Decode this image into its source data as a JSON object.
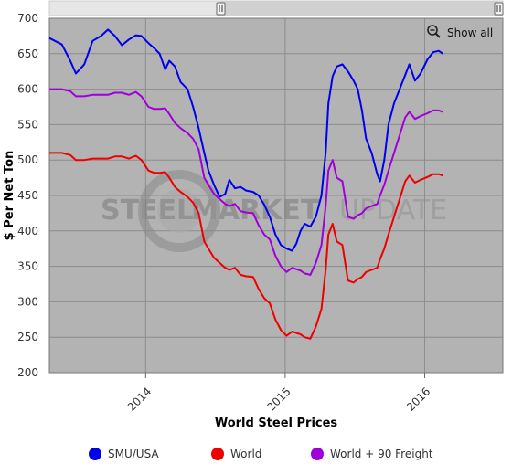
{
  "toolbar": {
    "show_all_label": "Show all",
    "zoom_icon": "zoom-out-icon"
  },
  "watermark": {
    "word1": "STEEL",
    "word2": "MARKET",
    "word3": "UPDATE"
  },
  "chart_data": {
    "type": "line",
    "title": "",
    "xlabel": "World Steel Prices",
    "ylabel": "$ Per Net Ton",
    "ylim": [
      200,
      700
    ],
    "yticks": [
      200,
      250,
      300,
      350,
      400,
      450,
      500,
      550,
      600,
      650,
      700
    ],
    "xlim": [
      2013.31,
      2016.56
    ],
    "xticks": [
      {
        "value": 2014,
        "label": "2014"
      },
      {
        "value": 2015,
        "label": "2015"
      },
      {
        "value": 2016,
        "label": "2016"
      }
    ],
    "grid": true,
    "legend": "bottom",
    "series": [
      {
        "name": "SMU/USA",
        "color": "#0000ee",
        "points": [
          [
            2013.31,
            672
          ],
          [
            2013.4,
            663
          ],
          [
            2013.46,
            640
          ],
          [
            2013.5,
            622
          ],
          [
            2013.56,
            635
          ],
          [
            2013.62,
            668
          ],
          [
            2013.68,
            675
          ],
          [
            2013.73,
            684
          ],
          [
            2013.78,
            675
          ],
          [
            2013.83,
            662
          ],
          [
            2013.88,
            670
          ],
          [
            2013.93,
            676
          ],
          [
            2013.97,
            675
          ],
          [
            2014.02,
            665
          ],
          [
            2014.06,
            658
          ],
          [
            2014.1,
            650
          ],
          [
            2014.14,
            628
          ],
          [
            2014.17,
            640
          ],
          [
            2014.21,
            632
          ],
          [
            2014.25,
            610
          ],
          [
            2014.3,
            600
          ],
          [
            2014.34,
            575
          ],
          [
            2014.38,
            545
          ],
          [
            2014.42,
            510
          ],
          [
            2014.45,
            485
          ],
          [
            2014.49,
            465
          ],
          [
            2014.53,
            448
          ],
          [
            2014.57,
            452
          ],
          [
            2014.6,
            472
          ],
          [
            2014.64,
            460
          ],
          [
            2014.68,
            462
          ],
          [
            2014.72,
            457
          ],
          [
            2014.77,
            455
          ],
          [
            2014.81,
            450
          ],
          [
            2014.85,
            437
          ],
          [
            2014.89,
            420
          ],
          [
            2014.93,
            395
          ],
          [
            2014.97,
            380
          ],
          [
            2015.01,
            375
          ],
          [
            2015.05,
            372
          ],
          [
            2015.08,
            382
          ],
          [
            2015.11,
            400
          ],
          [
            2015.14,
            410
          ],
          [
            2015.18,
            406
          ],
          [
            2015.22,
            420
          ],
          [
            2015.26,
            450
          ],
          [
            2015.29,
            510
          ],
          [
            2015.31,
            580
          ],
          [
            2015.34,
            618
          ],
          [
            2015.37,
            632
          ],
          [
            2015.41,
            635
          ],
          [
            2015.45,
            625
          ],
          [
            2015.49,
            612
          ],
          [
            2015.52,
            600
          ],
          [
            2015.55,
            570
          ],
          [
            2015.58,
            530
          ],
          [
            2015.62,
            510
          ],
          [
            2015.66,
            480
          ],
          [
            2015.68,
            470
          ],
          [
            2015.71,
            500
          ],
          [
            2015.74,
            550
          ],
          [
            2015.78,
            580
          ],
          [
            2015.82,
            600
          ],
          [
            2015.86,
            620
          ],
          [
            2015.89,
            635
          ],
          [
            2015.93,
            612
          ],
          [
            2015.97,
            622
          ],
          [
            2016.02,
            642
          ],
          [
            2016.06,
            652
          ],
          [
            2016.1,
            654
          ],
          [
            2016.13,
            650
          ]
        ]
      },
      {
        "name": "World",
        "color": "#ee0000",
        "points": [
          [
            2013.31,
            510
          ],
          [
            2013.4,
            510
          ],
          [
            2013.46,
            507
          ],
          [
            2013.5,
            500
          ],
          [
            2013.56,
            500
          ],
          [
            2013.62,
            502
          ],
          [
            2013.68,
            502
          ],
          [
            2013.73,
            502
          ],
          [
            2013.78,
            505
          ],
          [
            2013.83,
            505
          ],
          [
            2013.88,
            502
          ],
          [
            2013.93,
            506
          ],
          [
            2013.97,
            500
          ],
          [
            2014.02,
            485
          ],
          [
            2014.06,
            482
          ],
          [
            2014.1,
            482
          ],
          [
            2014.14,
            483
          ],
          [
            2014.17,
            475
          ],
          [
            2014.21,
            462
          ],
          [
            2014.25,
            455
          ],
          [
            2014.3,
            448
          ],
          [
            2014.34,
            440
          ],
          [
            2014.38,
            425
          ],
          [
            2014.42,
            385
          ],
          [
            2014.45,
            375
          ],
          [
            2014.49,
            362
          ],
          [
            2014.53,
            355
          ],
          [
            2014.57,
            348
          ],
          [
            2014.6,
            345
          ],
          [
            2014.64,
            348
          ],
          [
            2014.68,
            338
          ],
          [
            2014.72,
            336
          ],
          [
            2014.77,
            335
          ],
          [
            2014.81,
            318
          ],
          [
            2014.85,
            305
          ],
          [
            2014.89,
            298
          ],
          [
            2014.93,
            275
          ],
          [
            2014.97,
            260
          ],
          [
            2015.01,
            252
          ],
          [
            2015.05,
            258
          ],
          [
            2015.08,
            256
          ],
          [
            2015.11,
            254
          ],
          [
            2015.14,
            250
          ],
          [
            2015.18,
            248
          ],
          [
            2015.22,
            265
          ],
          [
            2015.26,
            290
          ],
          [
            2015.29,
            345
          ],
          [
            2015.31,
            395
          ],
          [
            2015.34,
            410
          ],
          [
            2015.37,
            385
          ],
          [
            2015.41,
            380
          ],
          [
            2015.45,
            330
          ],
          [
            2015.49,
            327
          ],
          [
            2015.52,
            332
          ],
          [
            2015.55,
            335
          ],
          [
            2015.58,
            342
          ],
          [
            2015.62,
            345
          ],
          [
            2015.66,
            348
          ],
          [
            2015.68,
            360
          ],
          [
            2015.71,
            375
          ],
          [
            2015.74,
            395
          ],
          [
            2015.78,
            420
          ],
          [
            2015.82,
            445
          ],
          [
            2015.86,
            470
          ],
          [
            2015.89,
            478
          ],
          [
            2015.93,
            468
          ],
          [
            2015.97,
            472
          ],
          [
            2016.02,
            476
          ],
          [
            2016.06,
            480
          ],
          [
            2016.1,
            480
          ],
          [
            2016.13,
            478
          ]
        ]
      },
      {
        "name": "World + 90 Freight",
        "color": "#a000d8",
        "points": [
          [
            2013.31,
            600
          ],
          [
            2013.4,
            600
          ],
          [
            2013.46,
            597
          ],
          [
            2013.5,
            590
          ],
          [
            2013.56,
            590
          ],
          [
            2013.62,
            592
          ],
          [
            2013.68,
            592
          ],
          [
            2013.73,
            592
          ],
          [
            2013.78,
            595
          ],
          [
            2013.83,
            595
          ],
          [
            2013.88,
            592
          ],
          [
            2013.93,
            596
          ],
          [
            2013.97,
            590
          ],
          [
            2014.02,
            575
          ],
          [
            2014.06,
            572
          ],
          [
            2014.1,
            572
          ],
          [
            2014.14,
            573
          ],
          [
            2014.17,
            565
          ],
          [
            2014.21,
            552
          ],
          [
            2014.25,
            545
          ],
          [
            2014.3,
            538
          ],
          [
            2014.34,
            530
          ],
          [
            2014.38,
            515
          ],
          [
            2014.42,
            475
          ],
          [
            2014.45,
            465
          ],
          [
            2014.49,
            452
          ],
          [
            2014.53,
            445
          ],
          [
            2014.57,
            438
          ],
          [
            2014.6,
            435
          ],
          [
            2014.64,
            438
          ],
          [
            2014.68,
            428
          ],
          [
            2014.72,
            426
          ],
          [
            2014.77,
            425
          ],
          [
            2014.81,
            408
          ],
          [
            2014.85,
            395
          ],
          [
            2014.89,
            388
          ],
          [
            2014.93,
            365
          ],
          [
            2014.97,
            350
          ],
          [
            2015.01,
            342
          ],
          [
            2015.05,
            348
          ],
          [
            2015.08,
            346
          ],
          [
            2015.11,
            344
          ],
          [
            2015.14,
            340
          ],
          [
            2015.18,
            338
          ],
          [
            2015.22,
            355
          ],
          [
            2015.26,
            380
          ],
          [
            2015.29,
            435
          ],
          [
            2015.31,
            485
          ],
          [
            2015.34,
            500
          ],
          [
            2015.37,
            475
          ],
          [
            2015.41,
            470
          ],
          [
            2015.45,
            420
          ],
          [
            2015.49,
            417
          ],
          [
            2015.52,
            422
          ],
          [
            2015.55,
            425
          ],
          [
            2015.58,
            432
          ],
          [
            2015.62,
            435
          ],
          [
            2015.66,
            438
          ],
          [
            2015.68,
            450
          ],
          [
            2015.71,
            465
          ],
          [
            2015.74,
            485
          ],
          [
            2015.78,
            510
          ],
          [
            2015.82,
            535
          ],
          [
            2015.86,
            560
          ],
          [
            2015.89,
            568
          ],
          [
            2015.93,
            558
          ],
          [
            2015.97,
            562
          ],
          [
            2016.02,
            566
          ],
          [
            2016.06,
            570
          ],
          [
            2016.1,
            570
          ],
          [
            2016.13,
            568
          ]
        ]
      }
    ]
  }
}
